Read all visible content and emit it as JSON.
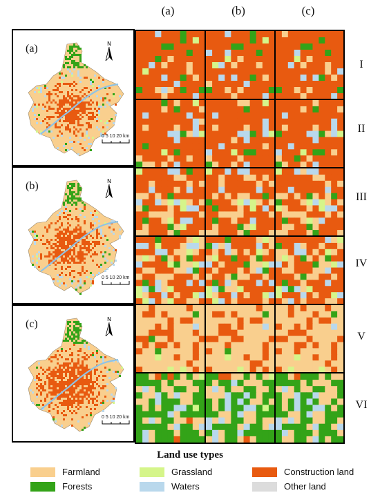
{
  "columns": [
    "(a)",
    "(b)",
    "(c)"
  ],
  "rows": [
    "I",
    "II",
    "III",
    "IV",
    "V",
    "VI"
  ],
  "maps": [
    {
      "label": "(a)",
      "scale_text": "0 5 10 20 km",
      "north": "N"
    },
    {
      "label": "(b)",
      "scale_text": "0 5 10 20 km",
      "north": "N"
    },
    {
      "label": "(c)",
      "scale_text": "0 5 10 20 km",
      "north": "N"
    }
  ],
  "legend": {
    "title": "Land use types",
    "items": [
      {
        "name": "Farmland",
        "color": "#F9CF8E"
      },
      {
        "name": "Grassland",
        "color": "#D5F58A"
      },
      {
        "name": "Construction land",
        "color": "#E85A10"
      },
      {
        "name": "Forests",
        "color": "#33A318"
      },
      {
        "name": "Waters",
        "color": "#B9D8EC"
      },
      {
        "name": "Other land",
        "color": "#DCDCDC"
      }
    ]
  },
  "colors": {
    "farmland": "#F9CF8E",
    "grassland": "#D5F58A",
    "construction": "#E85A10",
    "forests": "#33A318",
    "waters": "#B9D8EC",
    "other": "#DCDCDC"
  }
}
